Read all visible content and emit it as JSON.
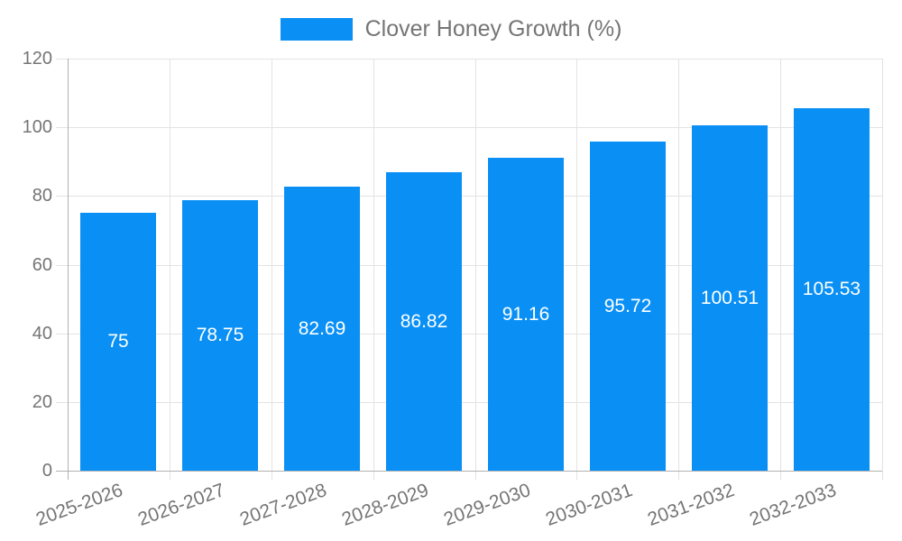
{
  "chart_data": {
    "type": "bar",
    "title": "",
    "legend": {
      "label": "Clover Honey Growth (%)",
      "position": "top"
    },
    "categories": [
      "2025-2026",
      "2026-2027",
      "2027-2028",
      "2028-2029",
      "2029-2030",
      "2030-2031",
      "2031-2032",
      "2032-2033"
    ],
    "series": [
      {
        "name": "Clover Honey Growth (%)",
        "values": [
          75,
          78.75,
          82.69,
          86.82,
          91.16,
          95.72,
          100.51,
          105.53
        ]
      }
    ],
    "value_labels": [
      "75",
      "78.75",
      "82.69",
      "86.82",
      "91.16",
      "95.72",
      "100.51",
      "105.53"
    ],
    "xlabel": "",
    "ylabel": "",
    "ylim": [
      0,
      120
    ],
    "yticks": [
      0,
      20,
      40,
      60,
      80,
      100,
      120
    ],
    "grid": true,
    "x_label_rotation_deg": -20,
    "colors": {
      "bar": "#0a90f5",
      "grid": "#e3e3e3",
      "axis": "#b1b1b1",
      "tick_label": "#757575",
      "value_label": "#ffffff",
      "legend_text": "#757575",
      "background": "#ffffff"
    }
  }
}
